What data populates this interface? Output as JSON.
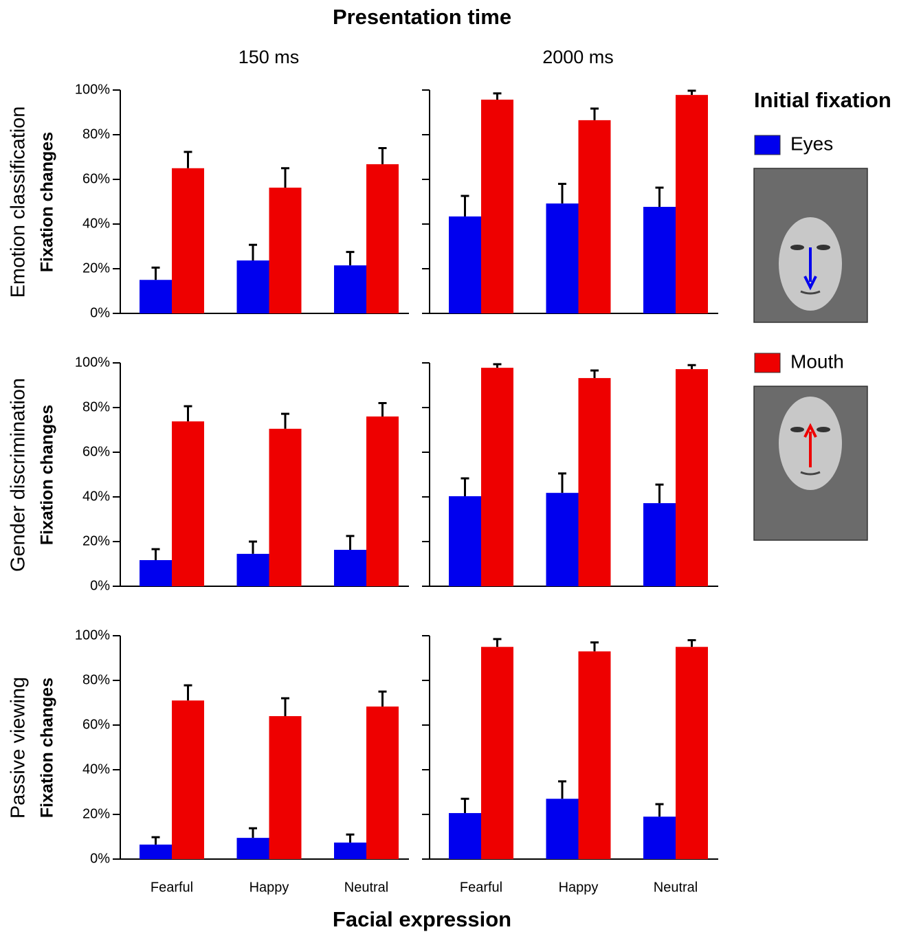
{
  "title": "Presentation time",
  "columns": [
    "150 ms",
    "2000 ms"
  ],
  "rows": [
    {
      "label": "Emotion classification",
      "y_label": "Fixation changes"
    },
    {
      "label": "Gender discrimination",
      "y_label": "Fixation changes"
    },
    {
      "label": "Passive viewing",
      "y_label": "Fixation changes"
    }
  ],
  "x_label": "Facial expression",
  "legend": {
    "title": "Initial fixation",
    "entries": [
      {
        "name": "Eyes",
        "color": "#0000ee"
      },
      {
        "name": "Mouth",
        "color": "#ee0000"
      }
    ]
  },
  "chart_data": [
    {
      "type": "bar",
      "categories": [
        null,
        null,
        null
      ],
      "series": [
        {
          "color": "#0000ee",
          "values": [
            15,
            23.7,
            21.5
          ],
          "errors": [
            5.5,
            7,
            6
          ]
        },
        {
          "color": "#ee0000",
          "values": [
            65,
            56.3,
            66.8
          ],
          "errors": [
            7.3,
            8.7,
            7.2
          ]
        }
      ],
      "ylim": [
        0,
        100
      ],
      "yticks": [
        {
          "value": 0,
          "label": "0%"
        },
        {
          "value": 20,
          "label": "20%"
        },
        {
          "value": 40,
          "label": "40%"
        },
        {
          "value": 60,
          "label": "60%"
        },
        {
          "value": 80,
          "label": "80%"
        },
        {
          "value": 100,
          "label": "100%"
        }
      ]
    },
    {
      "type": "bar",
      "categories": [
        null,
        null,
        null
      ],
      "series": [
        {
          "color": "#0000ee",
          "values": [
            43.4,
            49.2,
            47.7
          ],
          "errors": [
            9.2,
            8.8,
            8.6
          ]
        },
        {
          "color": "#ee0000",
          "values": [
            95.7,
            86.5,
            97.8
          ],
          "errors": [
            2.8,
            5.2,
            1.9
          ]
        }
      ],
      "ylim": [
        0,
        100
      ],
      "yticks": [
        0,
        20,
        40,
        60,
        80,
        100
      ]
    },
    {
      "type": "bar",
      "categories": [
        null,
        null,
        null
      ],
      "series": [
        {
          "color": "#0000ee",
          "values": [
            11.7,
            14.5,
            16.3
          ],
          "errors": [
            4.9,
            5.5,
            6.2
          ]
        },
        {
          "color": "#ee0000",
          "values": [
            73.8,
            70.5,
            76
          ],
          "errors": [
            6.8,
            6.7,
            6
          ]
        }
      ],
      "ylim": [
        0,
        100
      ],
      "yticks": [
        {
          "value": 0,
          "label": "0%"
        },
        {
          "value": 20,
          "label": "20%"
        },
        {
          "value": 40,
          "label": "40%"
        },
        {
          "value": 60,
          "label": "60%"
        },
        {
          "value": 80,
          "label": "80%"
        },
        {
          "value": 100,
          "label": "100%"
        }
      ]
    },
    {
      "type": "bar",
      "categories": [
        null,
        null,
        null
      ],
      "series": [
        {
          "color": "#0000ee",
          "values": [
            40.3,
            41.8,
            37.2
          ],
          "errors": [
            8,
            8.7,
            8.3
          ]
        },
        {
          "color": "#ee0000",
          "values": [
            97.8,
            93.2,
            97.2
          ],
          "errors": [
            1.6,
            3.4,
            1.8
          ]
        }
      ],
      "ylim": [
        0,
        100
      ],
      "yticks": [
        0,
        20,
        40,
        60,
        80,
        100
      ]
    },
    {
      "type": "bar",
      "categories": [
        "Fearful",
        "Happy",
        "Neutral"
      ],
      "series": [
        {
          "color": "#0000ee",
          "values": [
            6.5,
            9.5,
            7.4
          ],
          "errors": [
            3.3,
            4.3,
            3.6
          ]
        },
        {
          "color": "#ee0000",
          "values": [
            71,
            64,
            68.3
          ],
          "errors": [
            6.8,
            8,
            6.7
          ]
        }
      ],
      "ylim": [
        0,
        100
      ],
      "yticks": [
        {
          "value": 0,
          "label": "0%"
        },
        {
          "value": 20,
          "label": "20%"
        },
        {
          "value": 40,
          "label": "40%"
        },
        {
          "value": 60,
          "label": "60%"
        },
        {
          "value": 80,
          "label": "80%"
        },
        {
          "value": 100,
          "label": "100%"
        }
      ]
    },
    {
      "type": "bar",
      "categories": [
        "Fearful",
        "Happy",
        "Neutral"
      ],
      "series": [
        {
          "color": "#0000ee",
          "values": [
            20.6,
            27,
            19
          ],
          "errors": [
            6.4,
            7.8,
            5.6
          ]
        },
        {
          "color": "#ee0000",
          "values": [
            95,
            93,
            95
          ],
          "errors": [
            3.5,
            4,
            3
          ]
        }
      ],
      "ylim": [
        0,
        100
      ],
      "yticks": [
        0,
        20,
        40,
        60,
        80,
        100
      ]
    }
  ]
}
